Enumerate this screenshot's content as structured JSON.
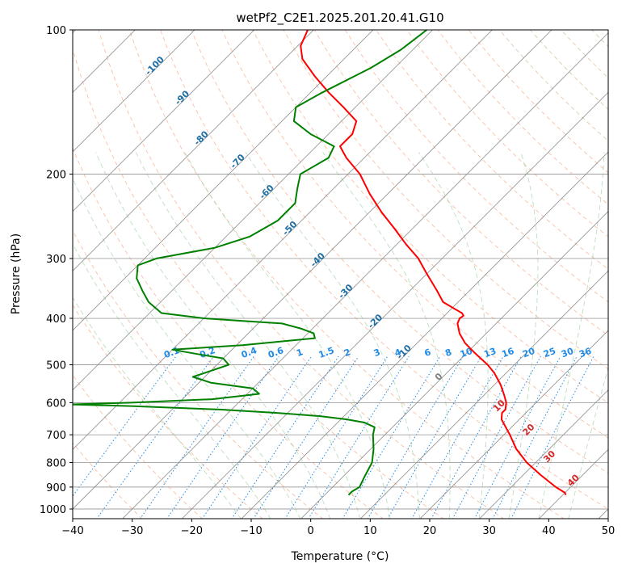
{
  "chart_data": {
    "type": "skew-t log-p",
    "title": "wetPf2_C2E1.2025.201.20.41.G10",
    "xlabel": "Temperature (°C)",
    "ylabel": "Pressure (hPa)",
    "xlim": [
      -40,
      50
    ],
    "ylim": [
      1050,
      100
    ],
    "y_scale": "log",
    "x_ticks": [
      "−40",
      "−30",
      "−20",
      "−10",
      "0",
      "10",
      "20",
      "30",
      "40",
      "50"
    ],
    "y_ticks": [
      "100",
      "200",
      "300",
      "400",
      "500",
      "600",
      "700",
      "800",
      "900",
      "1000"
    ],
    "grid": true,
    "series": [
      {
        "color": "#ff0000",
        "points": [
          [
            935,
            40.5
          ],
          [
            925,
            40.0
          ],
          [
            900,
            37.5
          ],
          [
            850,
            33.0
          ],
          [
            800,
            28.5
          ],
          [
            750,
            24.5
          ],
          [
            700,
            21.0
          ],
          [
            650,
            17.0
          ],
          [
            630,
            16.0
          ],
          [
            620,
            16.0
          ],
          [
            600,
            15.0
          ],
          [
            580,
            13.5
          ],
          [
            550,
            11.0
          ],
          [
            520,
            8.0
          ],
          [
            500,
            5.5
          ],
          [
            470,
            1.0
          ],
          [
            450,
            -2.0
          ],
          [
            430,
            -4.5
          ],
          [
            410,
            -6.5
          ],
          [
            400,
            -7.0
          ],
          [
            395,
            -6.8
          ],
          [
            390,
            -7.5
          ],
          [
            380,
            -10.0
          ],
          [
            370,
            -12.5
          ],
          [
            350,
            -15.5
          ],
          [
            320,
            -20.5
          ],
          [
            300,
            -24.0
          ],
          [
            280,
            -28.5
          ],
          [
            260,
            -33.0
          ],
          [
            240,
            -38.0
          ],
          [
            220,
            -43.0
          ],
          [
            200,
            -48.0
          ],
          [
            185,
            -53.0
          ],
          [
            175,
            -56.0
          ],
          [
            165,
            -56.0
          ],
          [
            155,
            -57.5
          ],
          [
            145,
            -62.0
          ],
          [
            135,
            -67.0
          ],
          [
            125,
            -72.0
          ],
          [
            115,
            -77.0
          ],
          [
            108,
            -79.5
          ],
          [
            100,
            -81.0
          ]
        ]
      },
      {
        "color": "#008000",
        "points": [
          [
            935,
            4.0
          ],
          [
            920,
            4.0
          ],
          [
            900,
            4.5
          ],
          [
            850,
            3.5
          ],
          [
            800,
            2.5
          ],
          [
            750,
            0.5
          ],
          [
            700,
            -2.0
          ],
          [
            675,
            -3.0
          ],
          [
            660,
            -5.5
          ],
          [
            650,
            -9.0
          ],
          [
            640,
            -14.0
          ],
          [
            630,
            -22.0
          ],
          [
            620,
            -32.0
          ],
          [
            610,
            -47.0
          ],
          [
            605,
            -58.0
          ],
          [
            600,
            -48.0
          ],
          [
            590,
            -35.0
          ],
          [
            575,
            -28.0
          ],
          [
            560,
            -30.0
          ],
          [
            545,
            -38.0
          ],
          [
            530,
            -42.0
          ],
          [
            515,
            -40.0
          ],
          [
            500,
            -38.0
          ],
          [
            485,
            -40.0
          ],
          [
            475,
            -45.0
          ],
          [
            465,
            -50.0
          ],
          [
            455,
            -39.0
          ],
          [
            440,
            -28.0
          ],
          [
            430,
            -29.0
          ],
          [
            420,
            -32.0
          ],
          [
            410,
            -36.0
          ],
          [
            405,
            -43.0
          ],
          [
            400,
            -50.0
          ],
          [
            390,
            -58.0
          ],
          [
            370,
            -62.0
          ],
          [
            350,
            -65.0
          ],
          [
            330,
            -68.0
          ],
          [
            310,
            -70.0
          ],
          [
            300,
            -68.0
          ],
          [
            285,
            -60.0
          ],
          [
            270,
            -56.0
          ],
          [
            250,
            -54.0
          ],
          [
            230,
            -54.0
          ],
          [
            215,
            -56.0
          ],
          [
            200,
            -58.0
          ],
          [
            185,
            -56.0
          ],
          [
            175,
            -57.0
          ],
          [
            165,
            -63.0
          ],
          [
            155,
            -68.0
          ],
          [
            145,
            -70.0
          ],
          [
            135,
            -68.0
          ],
          [
            120,
            -64.0
          ],
          [
            110,
            -62.0
          ],
          [
            100,
            -61.0
          ]
        ]
      }
    ],
    "isotherm_labels": [
      {
        "text": "-100",
        "t": -100,
        "p": 120
      },
      {
        "text": "-90",
        "t": -90,
        "p": 140
      },
      {
        "text": "-80",
        "t": -80,
        "p": 170
      },
      {
        "text": "-70",
        "t": -70,
        "p": 190
      },
      {
        "text": "-60",
        "t": -60,
        "p": 220
      },
      {
        "text": "-50",
        "t": -50,
        "p": 262
      },
      {
        "text": "-40",
        "t": -40,
        "p": 305
      },
      {
        "text": "-30",
        "t": -30,
        "p": 355
      },
      {
        "text": "-20",
        "t": -20,
        "p": 410
      },
      {
        "text": "-10",
        "t": -10,
        "p": 475
      },
      {
        "text": "0",
        "t": 0,
        "p": 535
      }
    ],
    "moist_labels": [
      {
        "text": "10",
        "t": 15,
        "p": 615
      },
      {
        "text": "20",
        "t": 24,
        "p": 690
      },
      {
        "text": "30",
        "t": 32,
        "p": 785
      },
      {
        "text": "40",
        "t": 40,
        "p": 880
      }
    ],
    "mixing_ratio_labels": [
      {
        "text": "0.1",
        "t": -49,
        "p": 478
      },
      {
        "text": "0.2",
        "t": -43,
        "p": 478
      },
      {
        "text": "0.4",
        "t": -36,
        "p": 478
      },
      {
        "text": "0.6",
        "t": -31.5,
        "p": 478
      },
      {
        "text": "1",
        "t": -27.5,
        "p": 478
      },
      {
        "text": "1.5",
        "t": -23,
        "p": 478
      },
      {
        "text": "2",
        "t": -19.5,
        "p": 478
      },
      {
        "text": "3",
        "t": -14.5,
        "p": 478
      },
      {
        "text": "4",
        "t": -11,
        "p": 478
      },
      {
        "text": "6",
        "t": -6,
        "p": 478
      },
      {
        "text": "8",
        "t": -2.5,
        "p": 478
      },
      {
        "text": "10",
        "t": 0.5,
        "p": 478
      },
      {
        "text": "13",
        "t": 4.5,
        "p": 478
      },
      {
        "text": "16",
        "t": 7.5,
        "p": 478
      },
      {
        "text": "20",
        "t": 11,
        "p": 478
      },
      {
        "text": "25",
        "t": 14.5,
        "p": 478
      },
      {
        "text": "30",
        "t": 17.5,
        "p": 478
      },
      {
        "text": "36",
        "t": 20.5,
        "p": 478
      }
    ]
  }
}
